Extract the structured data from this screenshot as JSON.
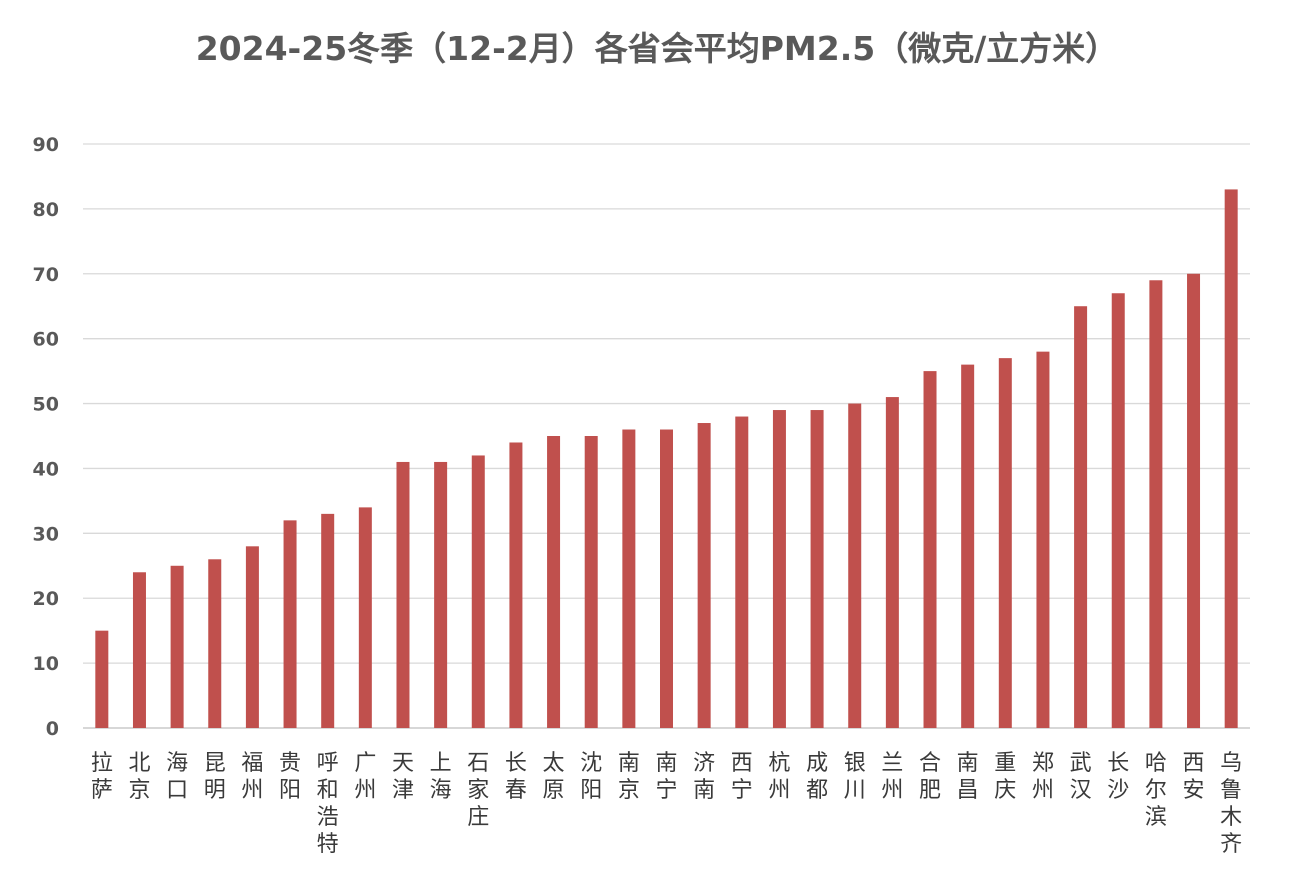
{
  "chart_data": {
    "type": "bar",
    "title": "2024-25冬季（12-2月）各省会平均PM2.5（微克/立方米）",
    "xlabel": "",
    "ylabel": "",
    "ylim": [
      0,
      90
    ],
    "yticks": [
      0,
      10,
      20,
      30,
      40,
      50,
      60,
      70,
      80,
      90
    ],
    "grid": true,
    "bar_color": "#c0504d",
    "categories": [
      "拉萨",
      "北京",
      "海口",
      "昆明",
      "福州",
      "贵阳",
      "呼和浩特",
      "广州",
      "天津",
      "上海",
      "石家庄",
      "长春",
      "太原",
      "沈阳",
      "南京",
      "南宁",
      "济南",
      "西宁",
      "杭州",
      "成都",
      "银川",
      "兰州",
      "合肥",
      "南昌",
      "重庆",
      "郑州",
      "武汉",
      "长沙",
      "哈尔滨",
      "西安",
      "乌鲁木齐"
    ],
    "values": [
      15,
      24,
      25,
      26,
      28,
      32,
      33,
      34,
      41,
      41,
      42,
      44,
      45,
      45,
      46,
      46,
      47,
      48,
      49,
      49,
      50,
      51,
      55,
      56,
      57,
      58,
      65,
      67,
      69,
      70,
      83
    ]
  }
}
